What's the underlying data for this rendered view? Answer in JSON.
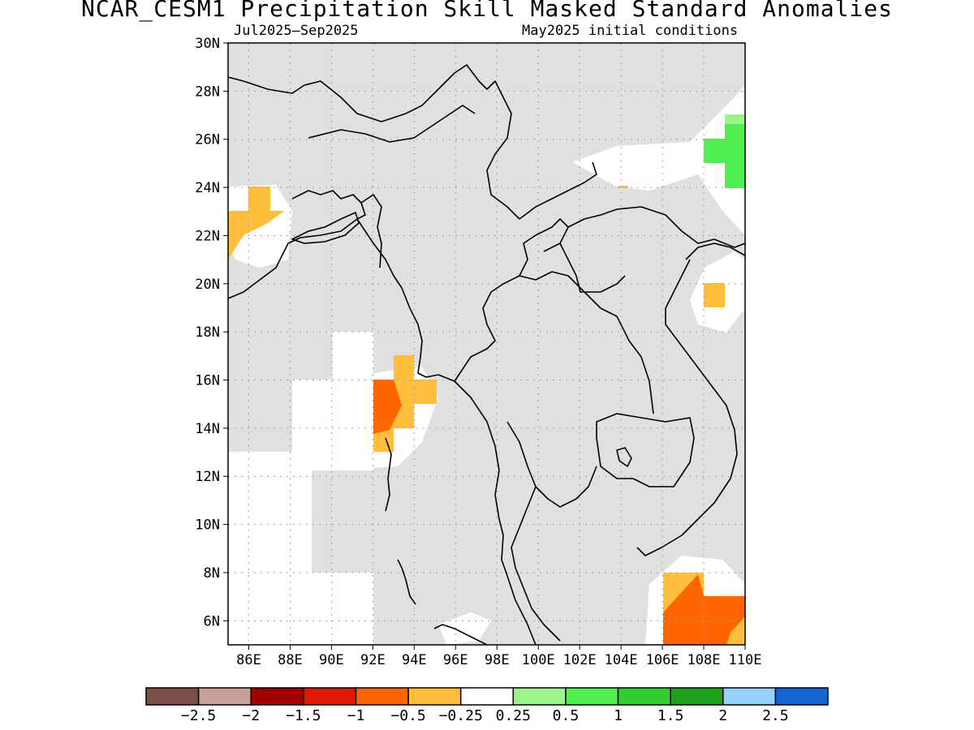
{
  "title": "NCAR_CESM1 Precipitation Skill Masked Standard Anomalies",
  "subtitle_left": "Jul2025—Sep2025",
  "subtitle_right": "May2025 initial conditions",
  "map": {
    "lon_range": [
      85,
      110
    ],
    "lat_range": [
      5,
      30
    ],
    "lon_ticks": [
      86,
      88,
      90,
      92,
      94,
      96,
      98,
      100,
      102,
      104,
      106,
      108,
      110
    ],
    "lat_ticks": [
      6,
      8,
      10,
      12,
      14,
      16,
      18,
      20,
      22,
      24,
      26,
      28,
      30
    ],
    "lon_tick_labels": [
      "86E",
      "88E",
      "90E",
      "92E",
      "94E",
      "96E",
      "98E",
      "100E",
      "102E",
      "104E",
      "106E",
      "108E",
      "110E"
    ],
    "lat_tick_labels": [
      "6N",
      "8N",
      "10N",
      "12N",
      "14N",
      "16N",
      "18N",
      "20N",
      "22N",
      "24N",
      "26N",
      "28N",
      "30N"
    ],
    "grid": "dotted",
    "mask_color": "#e0e0e0"
  },
  "colorbar": {
    "colors": [
      "#7a5048",
      "#c8a098",
      "#a00000",
      "#e01a00",
      "#ff6600",
      "#ffbe3c",
      "#ffffff",
      "#9cf58c",
      "#50f050",
      "#32cd32",
      "#1ea01e",
      "#96d2fa",
      "#1464d2"
    ],
    "labels": [
      "−2.5",
      "−2",
      "−1.5",
      "−1",
      "−0.5",
      "−0.25",
      "0.25",
      "0.5",
      "1",
      "1.5",
      "2",
      "2.5"
    ]
  }
}
